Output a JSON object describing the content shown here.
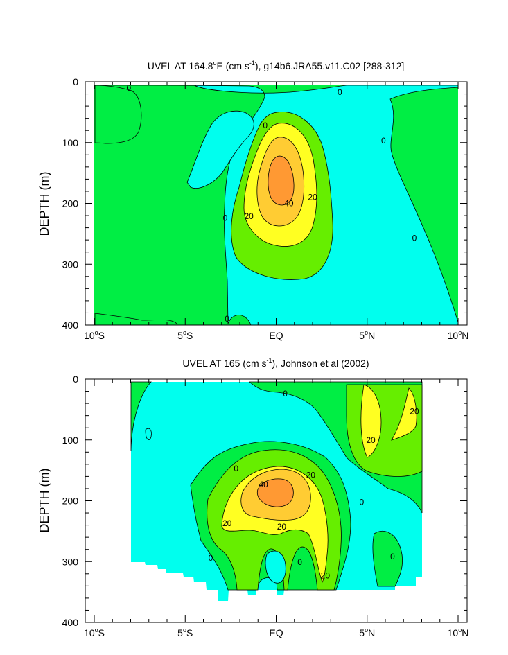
{
  "colors": {
    "neg": "#00ffee",
    "c0": "#00ee44",
    "c10": "#66ee00",
    "c20": "#ffff22",
    "c30": "#ffcc33",
    "c40": "#ff9933",
    "frame": "#000000",
    "background": "#ffffff"
  },
  "chart_data": [
    {
      "type": "contour",
      "panel": "top",
      "title": "UVEL AT 164.8°E (cm s-1), g14b6.JRA55.v11.C02 [288-312]",
      "title_parts": {
        "main": "UVEL AT 164.8",
        "deg": "o",
        "mid": "E (cm s",
        "exp": "-1",
        "end": "), g14b6.JRA55.v11.C02 [288-312]"
      },
      "ylabel": "DEPTH (m)",
      "xlim": [
        -10,
        10
      ],
      "ylim": [
        400,
        0
      ],
      "xticks": [
        -10,
        -5,
        0,
        5,
        10
      ],
      "xtick_labels": [
        "10°S",
        "5°S",
        "EQ",
        "5°N",
        "10°N"
      ],
      "xtick_parts": [
        [
          "10",
          "S"
        ],
        [
          "5",
          "S"
        ],
        [
          "EQ",
          ""
        ],
        [
          "5",
          "N"
        ],
        [
          "10",
          "N"
        ]
      ],
      "yticks": [
        0,
        100,
        200,
        300,
        400
      ],
      "ytick_labels": [
        "0",
        "100",
        "200",
        "300",
        "400"
      ],
      "contour_interval": 10,
      "contour_labels": [
        {
          "text": "0",
          "x": -8.1,
          "y": 10
        },
        {
          "text": "0",
          "x": 3.5,
          "y": 17
        },
        {
          "text": "0",
          "x": -0.6,
          "y": 72
        },
        {
          "text": "0",
          "x": 5.9,
          "y": 97
        },
        {
          "text": "0",
          "x": -2.8,
          "y": 224
        },
        {
          "text": "0",
          "x": 7.6,
          "y": 257
        },
        {
          "text": "0",
          "x": -2.7,
          "y": 390
        },
        {
          "text": "20",
          "x": -1.5,
          "y": 221
        },
        {
          "text": "40",
          "x": 0.7,
          "y": 200
        },
        {
          "text": "20",
          "x": 2.0,
          "y": 190
        }
      ]
    },
    {
      "type": "contour",
      "panel": "bottom",
      "title": "UVEL AT 165 (cm s-1), Johnson et al (2002)",
      "title_parts": {
        "main": "UVEL AT 165 (cm s",
        "exp": "-1",
        "end": "), Johnson et al (2002)"
      },
      "ylabel": "DEPTH (m)",
      "xlim": [
        -10,
        10
      ],
      "ylim": [
        400,
        0
      ],
      "xticks": [
        -10,
        -5,
        0,
        5,
        10
      ],
      "xtick_labels": [
        "10°S",
        "5°S",
        "EQ",
        "5°N",
        "10°N"
      ],
      "xtick_parts": [
        [
          "10",
          "S"
        ],
        [
          "5",
          "S"
        ],
        [
          "EQ",
          ""
        ],
        [
          "5",
          "N"
        ],
        [
          "10",
          "N"
        ]
      ],
      "yticks": [
        0,
        100,
        200,
        300,
        400
      ],
      "ytick_labels": [
        "0",
        "100",
        "200",
        "300",
        "400"
      ],
      "data_xlim": [
        -8,
        8
      ],
      "contour_interval": 10,
      "contour_labels": [
        {
          "text": "0",
          "x": 0.5,
          "y": 24
        },
        {
          "text": "20",
          "x": 7.6,
          "y": 53
        },
        {
          "text": "20",
          "x": 5.2,
          "y": 100
        },
        {
          "text": "0",
          "x": -2.2,
          "y": 147
        },
        {
          "text": "20",
          "x": 1.9,
          "y": 158
        },
        {
          "text": "40",
          "x": -0.7,
          "y": 173
        },
        {
          "text": "0",
          "x": 4.7,
          "y": 202
        },
        {
          "text": "20",
          "x": -2.7,
          "y": 237
        },
        {
          "text": "20",
          "x": 0.3,
          "y": 243
        },
        {
          "text": "0",
          "x": -3.6,
          "y": 294
        },
        {
          "text": "0",
          "x": 1.3,
          "y": 301
        },
        {
          "text": "20",
          "x": 2.7,
          "y": 323
        },
        {
          "text": "0",
          "x": 6.4,
          "y": 292
        }
      ]
    }
  ]
}
